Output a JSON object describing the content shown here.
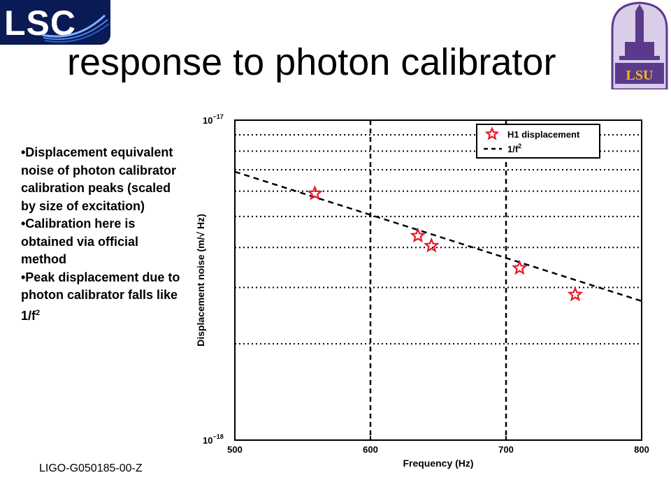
{
  "header": {
    "title": "response to photon calibrator",
    "lsc_logo_text": "LSC",
    "lsu_logo_text": "LSU"
  },
  "bullets": [
    {
      "text": "•Displacement equivalent noise of photon calibrator calibration peaks (scaled by size of excitation)"
    },
    {
      "text": "•Calibration here is obtained via official method"
    },
    {
      "text": "•Peak displacement due to photon calibrator falls like 1/f",
      "sup": "2"
    }
  ],
  "footer": {
    "doc_id": "LIGO-G050185-00-Z"
  },
  "colors": {
    "marker": "#e8192c",
    "line": "#000000",
    "grid": "#000000",
    "lsu_purple": "#5b3a8c",
    "lsu_gold": "#f2b81b",
    "lsc_navy": "#0a1a55"
  },
  "chart_data": {
    "type": "scatter",
    "xlabel": "Frequency (Hz)",
    "ylabel": "Displacement noise (m/√ Hz)",
    "xlim": [
      500,
      800
    ],
    "ylim": [
      1e-18,
      1e-17
    ],
    "yscale": "log",
    "x_ticks": [
      500,
      600,
      700,
      800
    ],
    "x_tick_labels": [
      "500",
      "600",
      "700",
      "800"
    ],
    "y_ticks": [
      {
        "base": "10",
        "exp": "−17",
        "value": 1e-17
      },
      {
        "base": "10",
        "exp": "−18",
        "value": 1e-18
      }
    ],
    "grid": true,
    "legend_position": "top-right",
    "series": [
      {
        "name": "H1 displacement",
        "kind": "markers",
        "x": [
          559,
          635,
          645,
          710,
          751
        ],
        "y": [
          5.9e-18,
          4.35e-18,
          4.05e-18,
          3.45e-18,
          2.85e-18
        ]
      },
      {
        "name": "1/f",
        "name_sup": "2",
        "kind": "dashed-line",
        "x": [
          500,
          800
        ],
        "y": [
          6.9e-18,
          2.72e-18
        ]
      }
    ]
  }
}
